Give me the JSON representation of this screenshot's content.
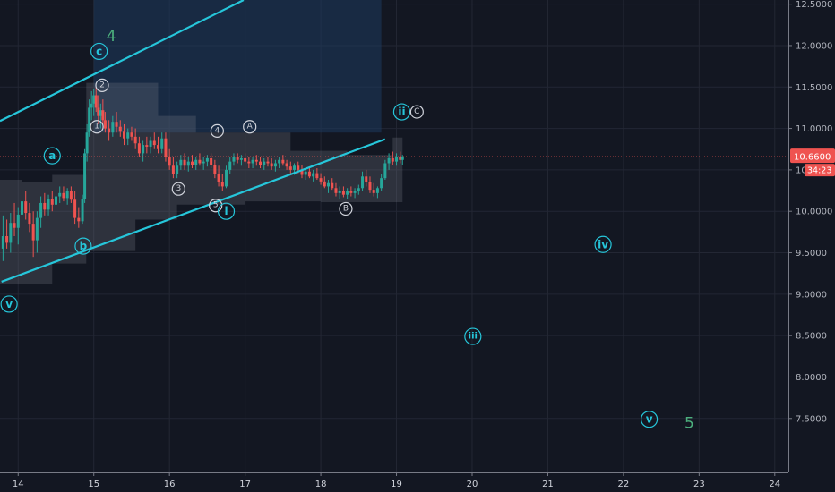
{
  "chart_data": {
    "type": "candlestick",
    "x_ticks": [
      "14",
      "15",
      "16",
      "17",
      "18",
      "19",
      "20",
      "21",
      "22",
      "23",
      "24"
    ],
    "y_ticks": [
      "7.5000",
      "8.0000",
      "8.5000",
      "9.0000",
      "9.5000",
      "10.0000",
      "10.5000",
      "11.0000",
      "11.5000",
      "12.0000",
      "12.5000"
    ],
    "xlim": [
      13.76,
      24.18
    ],
    "ylim": [
      6.85,
      12.55
    ],
    "last_price": {
      "label": "10.6600",
      "value": 10.66,
      "countdown": "34:23",
      "color": "#ef5350"
    },
    "candles": [
      [
        13.8,
        9.55,
        9.95,
        9.4,
        9.7
      ],
      [
        13.85,
        9.7,
        9.9,
        9.55,
        9.62
      ],
      [
        13.9,
        9.62,
        9.98,
        9.5,
        9.86
      ],
      [
        13.95,
        9.86,
        10.1,
        9.7,
        9.8
      ],
      [
        14.0,
        9.8,
        10.05,
        9.6,
        9.96
      ],
      [
        14.05,
        9.96,
        10.2,
        9.8,
        10.12
      ],
      [
        14.1,
        10.12,
        10.25,
        9.9,
        9.98
      ],
      [
        14.15,
        9.98,
        10.1,
        9.75,
        9.85
      ],
      [
        14.2,
        9.85,
        10.0,
        9.45,
        9.65
      ],
      [
        14.25,
        9.65,
        10.0,
        9.5,
        9.92
      ],
      [
        14.3,
        9.92,
        10.18,
        9.8,
        10.1
      ],
      [
        14.35,
        10.1,
        10.22,
        9.95,
        10.02
      ],
      [
        14.4,
        10.02,
        10.2,
        9.95,
        10.15
      ],
      [
        14.45,
        10.15,
        10.25,
        10.0,
        10.08
      ],
      [
        14.5,
        10.08,
        10.22,
        9.98,
        10.18
      ],
      [
        14.55,
        10.18,
        10.3,
        10.1,
        10.22
      ],
      [
        14.6,
        10.22,
        10.3,
        10.12,
        10.16
      ],
      [
        14.65,
        10.16,
        10.28,
        10.08,
        10.24
      ],
      [
        14.7,
        10.24,
        10.3,
        10.1,
        10.14
      ],
      [
        14.75,
        10.14,
        10.25,
        9.85,
        9.92
      ],
      [
        14.8,
        9.92,
        10.05,
        9.8,
        9.88
      ],
      [
        14.85,
        9.88,
        10.2,
        9.85,
        10.15
      ],
      [
        14.88,
        10.15,
        10.75,
        10.1,
        10.7
      ],
      [
        14.91,
        10.7,
        11.05,
        10.6,
        10.95
      ],
      [
        14.94,
        10.95,
        11.35,
        10.9,
        11.25
      ],
      [
        14.97,
        11.25,
        11.45,
        11.1,
        11.3
      ],
      [
        15.0,
        11.3,
        11.48,
        11.15,
        11.4
      ],
      [
        15.03,
        11.4,
        11.5,
        11.2,
        11.25
      ],
      [
        15.06,
        11.25,
        11.4,
        11.05,
        11.15
      ],
      [
        15.09,
        11.15,
        11.3,
        11.0,
        11.22
      ],
      [
        15.12,
        11.22,
        11.35,
        11.05,
        11.1
      ],
      [
        15.15,
        11.1,
        11.2,
        10.95,
        11.0
      ],
      [
        15.2,
        11.0,
        11.1,
        10.85,
        10.95
      ],
      [
        15.25,
        10.95,
        11.15,
        10.9,
        11.08
      ],
      [
        15.3,
        11.08,
        11.2,
        10.95,
        11.02
      ],
      [
        15.35,
        11.02,
        11.1,
        10.9,
        10.96
      ],
      [
        15.4,
        10.96,
        11.05,
        10.8,
        10.88
      ],
      [
        15.45,
        10.88,
        11.0,
        10.8,
        10.95
      ],
      [
        15.5,
        10.95,
        11.02,
        10.85,
        10.9
      ],
      [
        15.55,
        10.9,
        11.0,
        10.75,
        10.82
      ],
      [
        15.6,
        10.82,
        10.9,
        10.65,
        10.7
      ],
      [
        15.65,
        10.7,
        10.85,
        10.6,
        10.8
      ],
      [
        15.7,
        10.8,
        10.9,
        10.7,
        10.78
      ],
      [
        15.75,
        10.78,
        10.9,
        10.7,
        10.85
      ],
      [
        15.8,
        10.85,
        10.95,
        10.75,
        10.8
      ],
      [
        15.85,
        10.8,
        10.9,
        10.7,
        10.75
      ],
      [
        15.9,
        10.75,
        10.95,
        10.7,
        10.88
      ],
      [
        15.95,
        10.88,
        10.95,
        10.6,
        10.65
      ],
      [
        16.0,
        10.65,
        10.75,
        10.5,
        10.55
      ],
      [
        16.05,
        10.55,
        10.65,
        10.4,
        10.45
      ],
      [
        16.1,
        10.45,
        10.6,
        10.4,
        10.55
      ],
      [
        16.15,
        10.55,
        10.68,
        10.5,
        10.62
      ],
      [
        16.2,
        10.62,
        10.7,
        10.5,
        10.55
      ],
      [
        16.25,
        10.55,
        10.65,
        10.48,
        10.6
      ],
      [
        16.3,
        10.6,
        10.68,
        10.52,
        10.56
      ],
      [
        16.35,
        10.56,
        10.65,
        10.5,
        10.62
      ],
      [
        16.4,
        10.62,
        10.7,
        10.55,
        10.58
      ],
      [
        16.45,
        10.58,
        10.65,
        10.5,
        10.6
      ],
      [
        16.5,
        10.6,
        10.68,
        10.54,
        10.64
      ],
      [
        16.55,
        10.64,
        10.7,
        10.52,
        10.56
      ],
      [
        16.6,
        10.56,
        10.62,
        10.4,
        10.45
      ],
      [
        16.65,
        10.45,
        10.55,
        10.3,
        10.35
      ],
      [
        16.7,
        10.35,
        10.45,
        10.25,
        10.3
      ],
      [
        16.75,
        10.3,
        10.55,
        10.28,
        10.5
      ],
      [
        16.8,
        10.5,
        10.65,
        10.45,
        10.6
      ],
      [
        16.85,
        10.6,
        10.7,
        10.55,
        10.65
      ],
      [
        16.9,
        10.65,
        10.7,
        10.58,
        10.62
      ],
      [
        16.95,
        10.62,
        10.68,
        10.55,
        10.64
      ],
      [
        17.0,
        10.64,
        10.7,
        10.58,
        10.6
      ],
      [
        17.05,
        10.6,
        10.66,
        10.52,
        10.58
      ],
      [
        17.1,
        10.58,
        10.65,
        10.52,
        10.62
      ],
      [
        17.15,
        10.62,
        10.68,
        10.55,
        10.6
      ],
      [
        17.2,
        10.6,
        10.66,
        10.52,
        10.56
      ],
      [
        17.25,
        10.56,
        10.64,
        10.5,
        10.6
      ],
      [
        17.3,
        10.6,
        10.66,
        10.54,
        10.58
      ],
      [
        17.35,
        10.58,
        10.64,
        10.5,
        10.54
      ],
      [
        17.4,
        10.54,
        10.62,
        10.48,
        10.58
      ],
      [
        17.45,
        10.58,
        10.66,
        10.52,
        10.62
      ],
      [
        17.5,
        10.62,
        10.68,
        10.55,
        10.58
      ],
      [
        17.55,
        10.58,
        10.62,
        10.5,
        10.54
      ],
      [
        17.6,
        10.54,
        10.6,
        10.45,
        10.5
      ],
      [
        17.65,
        10.5,
        10.58,
        10.44,
        10.55
      ],
      [
        17.7,
        10.55,
        10.6,
        10.46,
        10.5
      ],
      [
        17.75,
        10.5,
        10.56,
        10.4,
        10.44
      ],
      [
        17.8,
        10.44,
        10.52,
        10.38,
        10.48
      ],
      [
        17.85,
        10.48,
        10.54,
        10.4,
        10.42
      ],
      [
        17.9,
        10.42,
        10.5,
        10.36,
        10.46
      ],
      [
        17.95,
        10.46,
        10.52,
        10.38,
        10.4
      ],
      [
        18.0,
        10.4,
        10.46,
        10.32,
        10.36
      ],
      [
        18.05,
        10.36,
        10.42,
        10.28,
        10.3
      ],
      [
        18.1,
        10.3,
        10.38,
        10.22,
        10.34
      ],
      [
        18.15,
        10.34,
        10.4,
        10.26,
        10.28
      ],
      [
        18.2,
        10.28,
        10.34,
        10.18,
        10.22
      ],
      [
        18.25,
        10.22,
        10.3,
        10.15,
        10.25
      ],
      [
        18.3,
        10.25,
        10.3,
        10.17,
        10.2
      ],
      [
        18.35,
        10.2,
        10.28,
        10.15,
        10.24
      ],
      [
        18.4,
        10.24,
        10.3,
        10.18,
        10.22
      ],
      [
        18.45,
        10.22,
        10.28,
        10.16,
        10.25
      ],
      [
        18.5,
        10.25,
        10.32,
        10.2,
        10.28
      ],
      [
        18.55,
        10.28,
        10.48,
        10.25,
        10.42
      ],
      [
        18.6,
        10.42,
        10.5,
        10.3,
        10.35
      ],
      [
        18.65,
        10.35,
        10.42,
        10.22,
        10.26
      ],
      [
        18.7,
        10.26,
        10.34,
        10.18,
        10.22
      ],
      [
        18.75,
        10.22,
        10.3,
        10.16,
        10.28
      ],
      [
        18.8,
        10.28,
        10.45,
        10.25,
        10.4
      ],
      [
        18.85,
        10.4,
        10.62,
        10.38,
        10.58
      ],
      [
        18.9,
        10.58,
        10.7,
        10.5,
        10.64
      ],
      [
        18.95,
        10.64,
        10.72,
        10.56,
        10.6
      ],
      [
        19.0,
        10.6,
        10.7,
        10.55,
        10.66
      ],
      [
        19.05,
        10.66,
        10.72,
        10.58,
        10.62
      ],
      [
        19.08,
        10.62,
        10.68,
        10.56,
        10.66
      ]
    ],
    "trend_lines": [
      {
        "color": "#26c6da",
        "points": [
          [
            13.76,
            11.09
          ],
          [
            16.98,
            12.55
          ]
        ]
      },
      {
        "color": "#26c6da",
        "points": [
          [
            13.78,
            9.15
          ],
          [
            18.85,
            10.87
          ]
        ]
      }
    ],
    "shaded_zone": {
      "x": [
        15.0,
        18.8
      ],
      "y": [
        10.95,
        12.55
      ],
      "color": "#1e3a5f"
    },
    "band": {
      "color": "#787b86",
      "upper": [
        [
          13.76,
          10.38
        ],
        [
          14.05,
          10.38
        ],
        [
          14.05,
          10.35
        ],
        [
          14.45,
          10.35
        ],
        [
          14.45,
          10.44
        ],
        [
          14.9,
          10.44
        ],
        [
          14.9,
          11.55
        ],
        [
          15.85,
          11.55
        ],
        [
          15.85,
          11.15
        ],
        [
          16.35,
          11.15
        ],
        [
          16.35,
          10.95
        ],
        [
          17.6,
          10.95
        ],
        [
          17.6,
          10.73
        ],
        [
          18.35,
          10.73
        ],
        [
          18.35,
          10.68
        ],
        [
          18.95,
          10.68
        ],
        [
          18.95,
          10.89
        ],
        [
          19.08,
          10.89
        ]
      ],
      "lower": [
        [
          13.76,
          9.12
        ],
        [
          14.45,
          9.12
        ],
        [
          14.45,
          9.37
        ],
        [
          14.9,
          9.37
        ],
        [
          14.9,
          9.52
        ],
        [
          15.55,
          9.52
        ],
        [
          15.55,
          9.9
        ],
        [
          16.1,
          9.9
        ],
        [
          16.1,
          10.08
        ],
        [
          17.0,
          10.08
        ],
        [
          17.0,
          10.12
        ],
        [
          18.0,
          10.12
        ],
        [
          18.0,
          10.11
        ],
        [
          19.08,
          10.11
        ]
      ]
    },
    "wave_labels": [
      {
        "text": "4",
        "x": 15.23,
        "y": 12.11,
        "style": "big"
      },
      {
        "text": "c",
        "x": 15.07,
        "y": 11.93,
        "style": "teal"
      },
      {
        "text": "2",
        "x": 15.11,
        "y": 11.52,
        "style": "white"
      },
      {
        "text": "1",
        "x": 15.04,
        "y": 11.02,
        "style": "white"
      },
      {
        "text": "4",
        "x": 16.63,
        "y": 10.97,
        "style": "white"
      },
      {
        "text": "A",
        "x": 17.06,
        "y": 11.02,
        "style": "white"
      },
      {
        "text": "ii",
        "x": 19.07,
        "y": 11.2,
        "style": "teal"
      },
      {
        "text": "C",
        "x": 19.27,
        "y": 11.2,
        "style": "white"
      },
      {
        "text": "a",
        "x": 14.45,
        "y": 10.67,
        "style": "teal"
      },
      {
        "text": "3",
        "x": 16.12,
        "y": 10.27,
        "style": "white"
      },
      {
        "text": "5",
        "x": 16.61,
        "y": 10.07,
        "style": "white"
      },
      {
        "text": "i",
        "x": 16.75,
        "y": 10.0,
        "style": "teal"
      },
      {
        "text": "B",
        "x": 18.33,
        "y": 10.03,
        "style": "white"
      },
      {
        "text": "b",
        "x": 14.86,
        "y": 9.58,
        "style": "teal"
      },
      {
        "text": "v",
        "x": 13.88,
        "y": 8.88,
        "style": "teal"
      },
      {
        "text": "iv",
        "x": 21.73,
        "y": 9.6,
        "style": "teal"
      },
      {
        "text": "iii",
        "x": 20.01,
        "y": 8.49,
        "style": "teal"
      },
      {
        "text": "v",
        "x": 22.34,
        "y": 7.49,
        "style": "teal"
      },
      {
        "text": "5",
        "x": 22.87,
        "y": 7.44,
        "style": "big"
      }
    ],
    "colors": {
      "background": "#131722",
      "grid": "#232734",
      "up": "#26a69a",
      "down": "#ef5350",
      "teal": "#26c6da",
      "big_label": "#4caf7d",
      "axis_text": "#b2b5be"
    }
  }
}
